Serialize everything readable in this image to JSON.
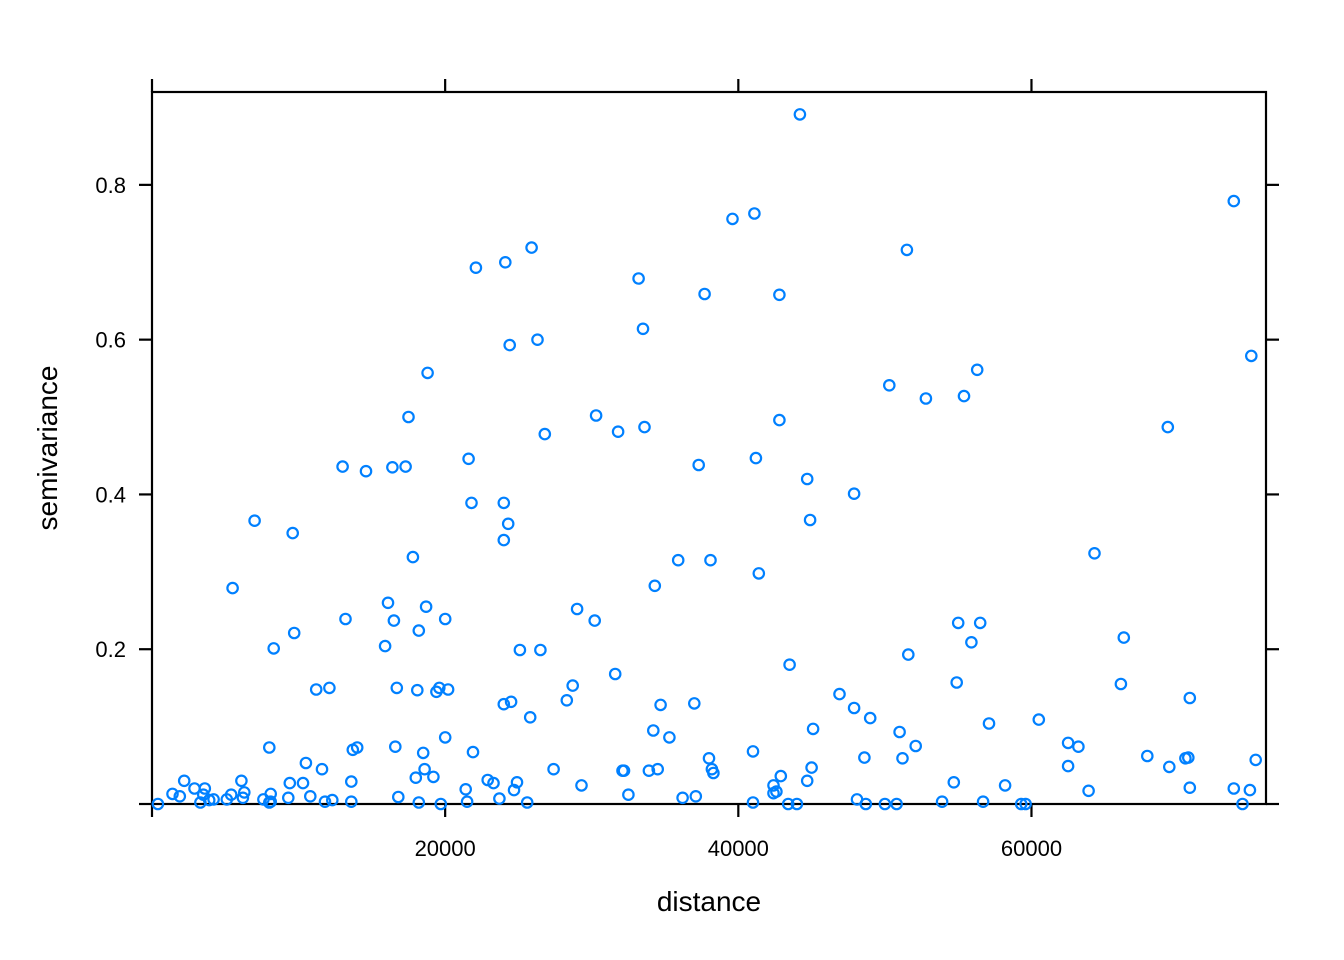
{
  "chart_data": {
    "type": "scatter",
    "xlabel": "distance",
    "ylabel": "semivariance",
    "xlim": [
      0,
      76000
    ],
    "ylim": [
      0,
      0.92
    ],
    "x_ticks": [
      20000,
      40000,
      60000
    ],
    "x_tick_labels": [
      "20000",
      "40000",
      "60000"
    ],
    "y_ticks": [
      0.2,
      0.4,
      0.6,
      0.8
    ],
    "y_tick_labels": [
      "0.2",
      "0.4",
      "0.6",
      "0.8"
    ],
    "grid": false,
    "colors": {
      "points": "#0080ff",
      "axis": "#000000"
    },
    "series": [
      {
        "points": [
          [
            400,
            0.0
          ],
          [
            1400,
            0.013
          ],
          [
            1900,
            0.01
          ],
          [
            2200,
            0.03
          ],
          [
            2900,
            0.02
          ],
          [
            3300,
            0.002
          ],
          [
            3500,
            0.012
          ],
          [
            3600,
            0.02
          ],
          [
            3900,
            0.005
          ],
          [
            4200,
            0.006
          ],
          [
            5100,
            0.006
          ],
          [
            5400,
            0.012
          ],
          [
            5500,
            0.279
          ],
          [
            6100,
            0.03
          ],
          [
            6200,
            0.008
          ],
          [
            6300,
            0.015
          ],
          [
            7000,
            0.366
          ],
          [
            7600,
            0.006
          ],
          [
            8000,
            0.002
          ],
          [
            8000,
            0.073
          ],
          [
            8100,
            0.013
          ],
          [
            8100,
            0.003
          ],
          [
            8300,
            0.201
          ],
          [
            9300,
            0.008
          ],
          [
            9400,
            0.027
          ],
          [
            9600,
            0.35
          ],
          [
            9700,
            0.221
          ],
          [
            10300,
            0.027
          ],
          [
            10500,
            0.053
          ],
          [
            10800,
            0.01
          ],
          [
            11200,
            0.148
          ],
          [
            11600,
            0.045
          ],
          [
            11800,
            0.003
          ],
          [
            12100,
            0.15
          ],
          [
            12300,
            0.005
          ],
          [
            13000,
            0.436
          ],
          [
            13200,
            0.239
          ],
          [
            13600,
            0.029
          ],
          [
            13600,
            0.003
          ],
          [
            13700,
            0.07
          ],
          [
            14000,
            0.073
          ],
          [
            14600,
            0.43
          ],
          [
            15900,
            0.204
          ],
          [
            16100,
            0.26
          ],
          [
            16400,
            0.435
          ],
          [
            16500,
            0.237
          ],
          [
            16600,
            0.074
          ],
          [
            16700,
            0.15
          ],
          [
            16800,
            0.009
          ],
          [
            17300,
            0.436
          ],
          [
            17500,
            0.5
          ],
          [
            17800,
            0.319
          ],
          [
            18000,
            0.034
          ],
          [
            18100,
            0.147
          ],
          [
            18200,
            0.224
          ],
          [
            18200,
            0.002
          ],
          [
            18500,
            0.066
          ],
          [
            18600,
            0.045
          ],
          [
            18700,
            0.255
          ],
          [
            18800,
            0.557
          ],
          [
            19200,
            0.035
          ],
          [
            19400,
            0.145
          ],
          [
            19600,
            0.15
          ],
          [
            19700,
            0.0
          ],
          [
            20000,
            0.239
          ],
          [
            20000,
            0.086
          ],
          [
            20200,
            0.148
          ],
          [
            21400,
            0.019
          ],
          [
            21500,
            0.003
          ],
          [
            21600,
            0.446
          ],
          [
            21800,
            0.389
          ],
          [
            21900,
            0.067
          ],
          [
            22100,
            0.693
          ],
          [
            22900,
            0.031
          ],
          [
            23300,
            0.027
          ],
          [
            23700,
            0.007
          ],
          [
            24000,
            0.129
          ],
          [
            24000,
            0.341
          ],
          [
            24000,
            0.389
          ],
          [
            24100,
            0.7
          ],
          [
            24300,
            0.362
          ],
          [
            24400,
            0.593
          ],
          [
            24500,
            0.132
          ],
          [
            24700,
            0.018
          ],
          [
            24900,
            0.028
          ],
          [
            25100,
            0.199
          ],
          [
            25600,
            0.002
          ],
          [
            25800,
            0.112
          ],
          [
            25900,
            0.719
          ],
          [
            26300,
            0.6
          ],
          [
            26500,
            0.199
          ],
          [
            26800,
            0.478
          ],
          [
            27400,
            0.045
          ],
          [
            28300,
            0.134
          ],
          [
            28700,
            0.153
          ],
          [
            29000,
            0.252
          ],
          [
            29300,
            0.024
          ],
          [
            30200,
            0.237
          ],
          [
            30300,
            0.502
          ],
          [
            31600,
            0.168
          ],
          [
            31800,
            0.481
          ],
          [
            32100,
            0.043
          ],
          [
            32200,
            0.043
          ],
          [
            32500,
            0.012
          ],
          [
            33200,
            0.679
          ],
          [
            33500,
            0.614
          ],
          [
            33600,
            0.487
          ],
          [
            33900,
            0.043
          ],
          [
            34200,
            0.095
          ],
          [
            34300,
            0.282
          ],
          [
            34500,
            0.045
          ],
          [
            34700,
            0.128
          ],
          [
            35300,
            0.086
          ],
          [
            35900,
            0.315
          ],
          [
            36200,
            0.008
          ],
          [
            37000,
            0.13
          ],
          [
            37100,
            0.01
          ],
          [
            37300,
            0.438
          ],
          [
            37700,
            0.659
          ],
          [
            38000,
            0.059
          ],
          [
            38100,
            0.315
          ],
          [
            38200,
            0.045
          ],
          [
            38300,
            0.04
          ],
          [
            39600,
            0.756
          ],
          [
            41000,
            0.068
          ],
          [
            41000,
            0.002
          ],
          [
            41100,
            0.763
          ],
          [
            41200,
            0.447
          ],
          [
            41400,
            0.298
          ],
          [
            42400,
            0.024
          ],
          [
            42400,
            0.014
          ],
          [
            42600,
            0.016
          ],
          [
            42800,
            0.496
          ],
          [
            42800,
            0.658
          ],
          [
            42900,
            0.036
          ],
          [
            43400,
            0.0
          ],
          [
            43500,
            0.18
          ],
          [
            44000,
            0.0
          ],
          [
            44200,
            0.891
          ],
          [
            44700,
            0.03
          ],
          [
            44700,
            0.42
          ],
          [
            44900,
            0.367
          ],
          [
            45000,
            0.047
          ],
          [
            45100,
            0.097
          ],
          [
            46900,
            0.142
          ],
          [
            47900,
            0.401
          ],
          [
            47900,
            0.124
          ],
          [
            48100,
            0.006
          ],
          [
            48600,
            0.06
          ],
          [
            48700,
            0.0
          ],
          [
            49000,
            0.111
          ],
          [
            50000,
            0.0
          ],
          [
            50300,
            0.541
          ],
          [
            50800,
            0.0
          ],
          [
            51000,
            0.093
          ],
          [
            51200,
            0.059
          ],
          [
            51500,
            0.716
          ],
          [
            51600,
            0.193
          ],
          [
            52100,
            0.075
          ],
          [
            52800,
            0.524
          ],
          [
            53900,
            0.003
          ],
          [
            54700,
            0.028
          ],
          [
            54900,
            0.157
          ],
          [
            55000,
            0.234
          ],
          [
            55400,
            0.527
          ],
          [
            55900,
            0.209
          ],
          [
            56300,
            0.561
          ],
          [
            56500,
            0.234
          ],
          [
            56700,
            0.003
          ],
          [
            57100,
            0.104
          ],
          [
            58200,
            0.024
          ],
          [
            59300,
            0.0
          ],
          [
            59600,
            0.0
          ],
          [
            60500,
            0.109
          ],
          [
            62500,
            0.079
          ],
          [
            62500,
            0.049
          ],
          [
            63200,
            0.074
          ],
          [
            63900,
            0.017
          ],
          [
            64300,
            0.324
          ],
          [
            66100,
            0.155
          ],
          [
            66300,
            0.215
          ],
          [
            67900,
            0.062
          ],
          [
            69300,
            0.487
          ],
          [
            69400,
            0.048
          ],
          [
            70500,
            0.059
          ],
          [
            70700,
            0.06
          ],
          [
            70800,
            0.137
          ],
          [
            70800,
            0.021
          ],
          [
            73800,
            0.779
          ],
          [
            73800,
            0.02
          ],
          [
            74400,
            0.0
          ],
          [
            74900,
            0.018
          ],
          [
            75000,
            0.579
          ],
          [
            75300,
            0.057
          ]
        ]
      }
    ]
  }
}
